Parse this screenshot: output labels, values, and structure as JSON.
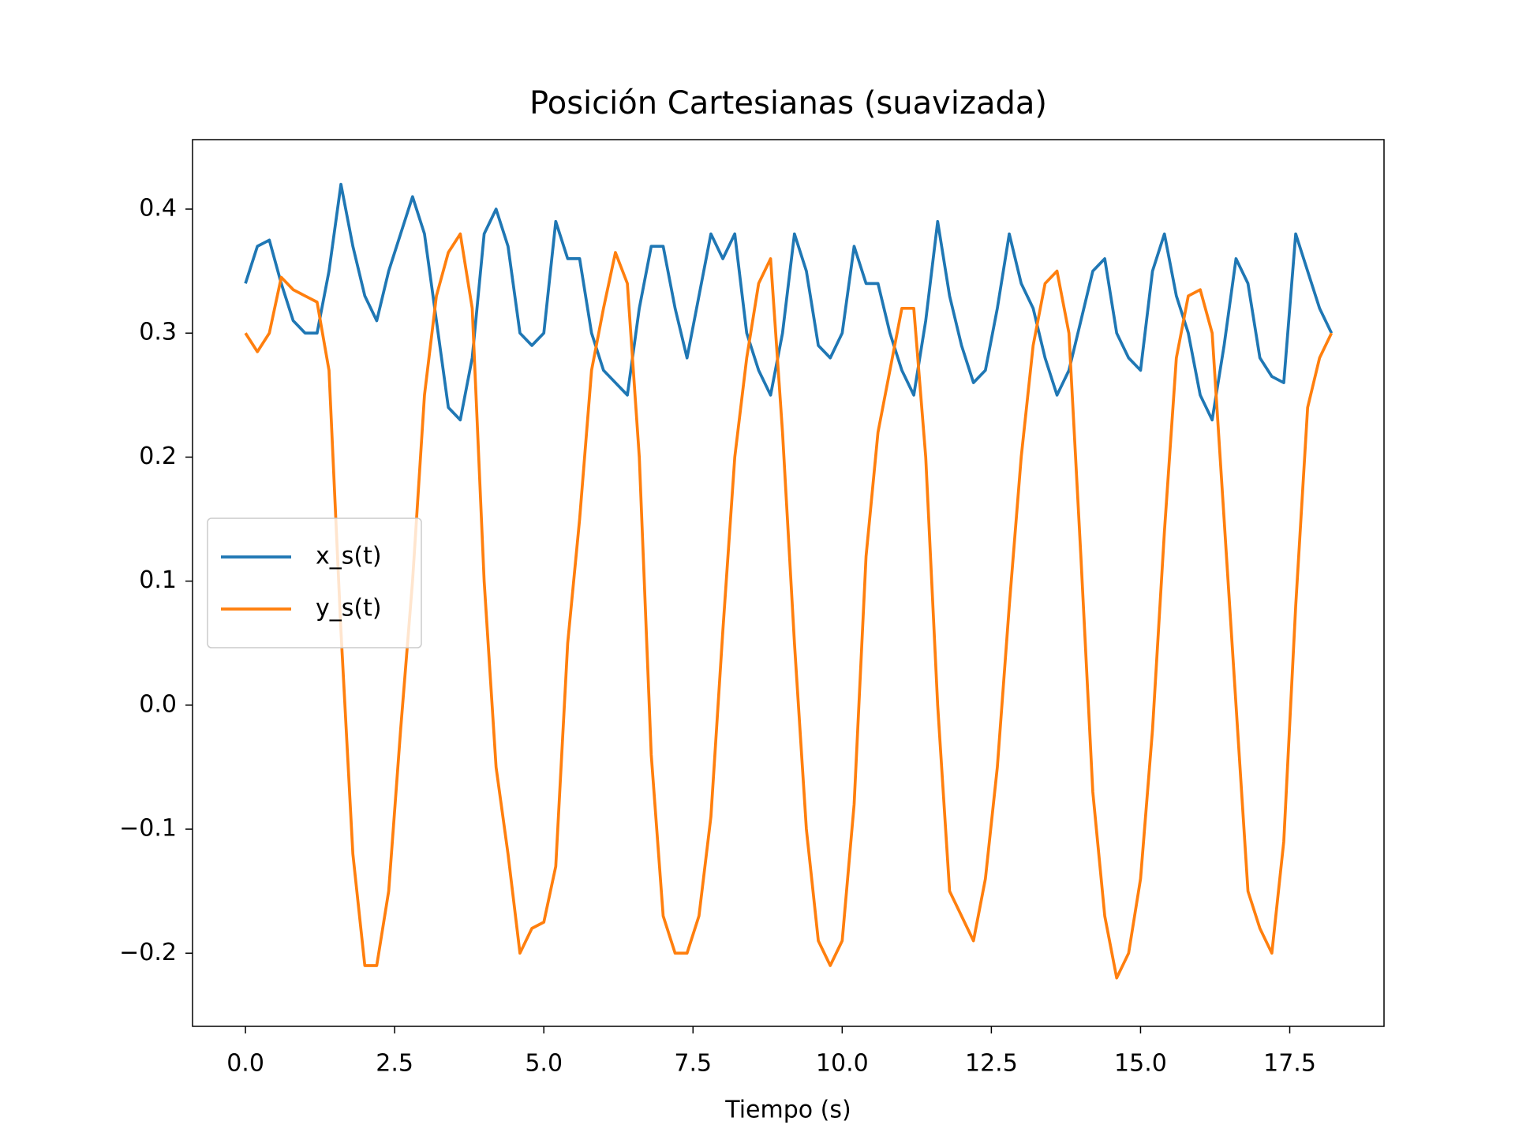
{
  "chart_data": {
    "type": "line",
    "title": "Posición Cartesianas (suavizada)",
    "xlabel": "Tiempo (s)",
    "x": [
      0.0,
      0.2,
      0.4,
      0.6,
      0.8,
      1.0,
      1.2,
      1.4,
      1.6,
      1.8,
      2.0,
      2.2,
      2.4,
      2.6,
      2.8,
      3.0,
      3.2,
      3.4,
      3.6,
      3.8,
      4.0,
      4.2,
      4.4,
      4.6,
      4.8,
      5.0,
      5.2,
      5.4,
      5.6,
      5.8,
      6.0,
      6.2,
      6.4,
      6.6,
      6.8,
      7.0,
      7.2,
      7.4,
      7.6,
      7.8,
      8.0,
      8.2,
      8.4,
      8.6,
      8.8,
      9.0,
      9.2,
      9.4,
      9.6,
      9.8,
      10.0,
      10.2,
      10.4,
      10.6,
      10.8,
      11.0,
      11.2,
      11.4,
      11.6,
      11.8,
      12.0,
      12.2,
      12.4,
      12.6,
      12.8,
      13.0,
      13.2,
      13.4,
      13.6,
      13.8,
      14.0,
      14.2,
      14.4,
      14.6,
      14.8,
      15.0,
      15.2,
      15.4,
      15.6,
      15.8,
      16.0,
      16.2,
      16.4,
      16.6,
      16.8,
      17.0,
      17.2,
      17.4,
      17.6,
      17.8,
      18.0,
      18.2
    ],
    "series": [
      {
        "name": "x_s(t)",
        "color": "#1f77b4",
        "values": [
          0.34,
          0.37,
          0.375,
          0.34,
          0.31,
          0.3,
          0.3,
          0.35,
          0.42,
          0.37,
          0.33,
          0.31,
          0.35,
          0.38,
          0.41,
          0.38,
          0.31,
          0.24,
          0.23,
          0.28,
          0.38,
          0.4,
          0.37,
          0.3,
          0.29,
          0.3,
          0.39,
          0.36,
          0.36,
          0.3,
          0.27,
          0.26,
          0.25,
          0.32,
          0.37,
          0.37,
          0.32,
          0.28,
          0.33,
          0.38,
          0.36,
          0.38,
          0.3,
          0.27,
          0.25,
          0.3,
          0.38,
          0.35,
          0.29,
          0.28,
          0.3,
          0.37,
          0.34,
          0.34,
          0.3,
          0.27,
          0.25,
          0.31,
          0.39,
          0.33,
          0.29,
          0.26,
          0.27,
          0.32,
          0.38,
          0.34,
          0.32,
          0.28,
          0.25,
          0.27,
          0.31,
          0.35,
          0.36,
          0.3,
          0.28,
          0.27,
          0.35,
          0.38,
          0.33,
          0.3,
          0.25,
          0.23,
          0.29,
          0.36,
          0.34,
          0.28,
          0.265,
          0.26,
          0.38,
          0.35,
          0.32,
          0.3
        ]
      },
      {
        "name": "y_s(t)",
        "color": "#ff7f0e",
        "values": [
          0.3,
          0.285,
          0.3,
          0.345,
          0.335,
          0.33,
          0.325,
          0.27,
          0.06,
          -0.12,
          -0.21,
          -0.21,
          -0.15,
          -0.02,
          0.1,
          0.25,
          0.33,
          0.365,
          0.38,
          0.32,
          0.1,
          -0.05,
          -0.12,
          -0.2,
          -0.18,
          -0.175,
          -0.13,
          0.05,
          0.15,
          0.27,
          0.32,
          0.365,
          0.34,
          0.2,
          -0.04,
          -0.17,
          -0.2,
          -0.2,
          -0.17,
          -0.09,
          0.06,
          0.2,
          0.28,
          0.34,
          0.36,
          0.22,
          0.05,
          -0.1,
          -0.19,
          -0.21,
          -0.19,
          -0.08,
          0.12,
          0.22,
          0.27,
          0.32,
          0.32,
          0.2,
          0.0,
          -0.15,
          -0.17,
          -0.19,
          -0.14,
          -0.05,
          0.08,
          0.2,
          0.29,
          0.34,
          0.35,
          0.3,
          0.12,
          -0.07,
          -0.17,
          -0.22,
          -0.2,
          -0.14,
          -0.02,
          0.14,
          0.28,
          0.33,
          0.335,
          0.3,
          0.15,
          0.0,
          -0.15,
          -0.18,
          -0.2,
          -0.11,
          0.08,
          0.24,
          0.28,
          0.3
        ]
      }
    ],
    "xlim": [
      -0.887,
      19.08
    ],
    "ylim": [
      -0.259,
      0.456
    ],
    "xticks": [
      {
        "value": 0,
        "label": "0.0"
      },
      2.5,
      {
        "value": 5,
        "label": "5.0"
      },
      7.5,
      {
        "value": 10,
        "label": "10.0"
      },
      12.5,
      {
        "value": 15,
        "label": "15.0"
      },
      17.5
    ],
    "yticks": [
      {
        "value": -0.2,
        "label": "−0.2"
      },
      {
        "value": -0.1,
        "label": "−0.1"
      },
      {
        "value": 0,
        "label": "0.0"
      },
      0.1,
      0.2,
      0.3,
      0.4
    ],
    "grid": false,
    "legend": "center left"
  }
}
